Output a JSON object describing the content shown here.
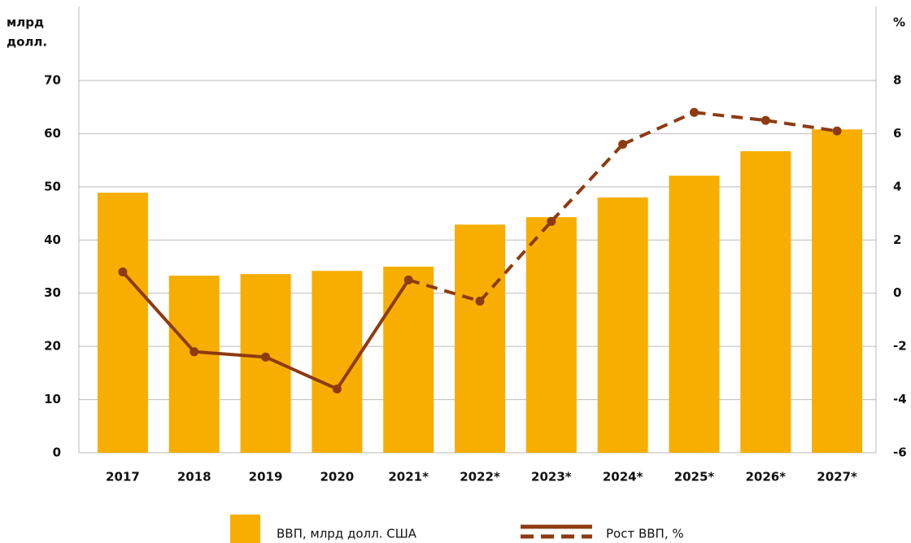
{
  "chart_data": {
    "type": "bar_line",
    "y_label": [
      "млрд",
      "долл."
    ],
    "y2_label": "%",
    "categories": [
      "2017",
      "2018",
      "2019",
      "2020",
      "2021*",
      "2022*",
      "2023*",
      "2024*",
      "2025*",
      "2026*",
      "2027*"
    ],
    "series": [
      {
        "name": "ВВП, млрд долл. США",
        "type": "bar",
        "color": "#f7ae00",
        "values": [
          48.9,
          33.3,
          33.6,
          34.2,
          35.0,
          42.9,
          44.3,
          48.0,
          52.1,
          56.7,
          60.8
        ]
      },
      {
        "name": "Рост ВВП, %",
        "type": "line",
        "axis": "y2",
        "color": "#8e3b12",
        "values": [
          0.8,
          -2.2,
          -2.4,
          -3.6,
          0.5,
          -0.3,
          2.7,
          5.6,
          6.8,
          6.5,
          6.1
        ]
      }
    ],
    "ylim": [
      0,
      70
    ],
    "yticks": [
      0,
      10,
      20,
      30,
      40,
      50,
      60,
      70
    ],
    "y2lim": [
      -6,
      8
    ],
    "y2ticks": [
      -6,
      -4,
      -2,
      0,
      2,
      4,
      6,
      8
    ],
    "grid": true
  }
}
